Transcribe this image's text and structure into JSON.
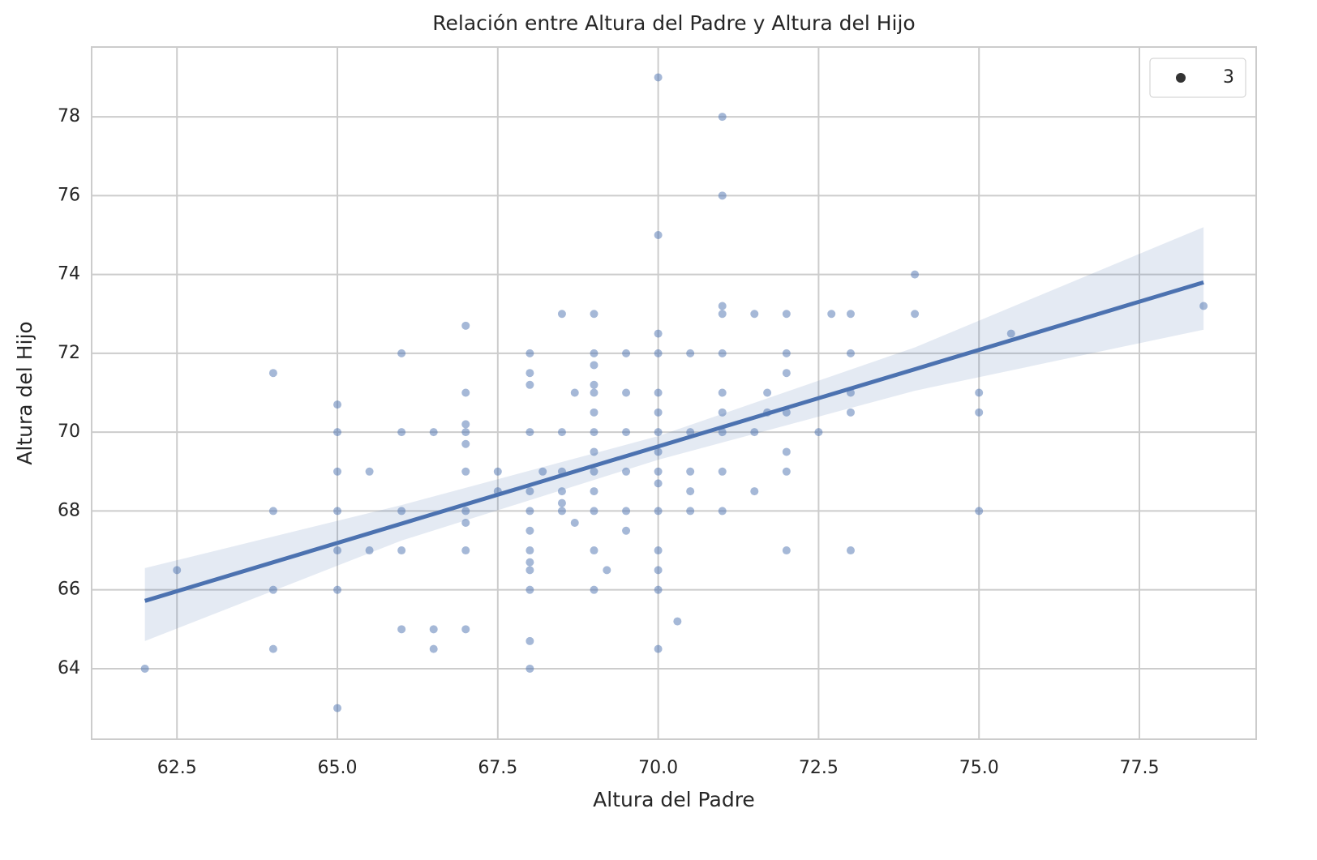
{
  "chart_data": {
    "type": "scatter",
    "title": "Relación entre Altura del Padre y Altura del Hijo",
    "x_label": "Altura del Padre",
    "y_label": "Altura del Hijo",
    "xlim": [
      61.17,
      79.32
    ],
    "ylim": [
      62.21,
      79.77
    ],
    "xticks": [
      62.5,
      {
        "value": 65,
        "label": "65.0"
      },
      67.5,
      {
        "value": 70,
        "label": "70.0"
      },
      72.5,
      {
        "value": 75,
        "label": "75.0"
      },
      77.5
    ],
    "yticks": [
      64,
      66,
      68,
      70,
      72,
      74,
      76,
      78
    ],
    "grid": true,
    "legend_position": "upper right",
    "series": [
      {
        "name": "3",
        "color": "#4c72b0",
        "x": [
          62,
          62.5,
          64,
          64,
          64,
          64,
          65,
          65,
          65,
          65,
          65,
          65,
          65,
          65.5,
          65.5,
          66,
          66,
          66,
          66,
          66,
          66.5,
          66.5,
          66.5,
          67,
          67,
          67,
          67,
          67,
          67,
          67,
          67,
          67,
          67,
          67.5,
          67.5,
          68,
          68,
          68,
          68,
          68,
          68,
          68,
          68,
          68,
          68,
          68,
          68,
          68,
          68.2,
          68.5,
          68.5,
          68.5,
          68.5,
          68.5,
          68.5,
          68.7,
          68.7,
          69,
          69,
          69,
          69,
          69,
          69,
          69,
          69,
          69,
          69,
          69,
          69,
          69,
          69.2,
          69.5,
          69.5,
          69.5,
          69.5,
          69.5,
          69.5,
          70,
          70,
          70,
          70,
          70,
          70,
          70,
          70,
          70,
          70,
          70,
          70,
          70,
          70,
          70,
          70.3,
          70.5,
          70.5,
          70.5,
          70.5,
          70.5,
          71,
          71,
          71,
          71,
          71,
          71,
          71,
          71,
          71,
          71,
          71.5,
          71.5,
          71.5,
          71.7,
          71.7,
          72,
          72,
          72,
          72,
          72,
          72,
          72,
          72.5,
          72.7,
          73,
          73,
          73,
          73,
          73,
          74,
          74,
          75,
          75,
          75,
          75.5,
          78.5
        ],
        "values": [
          64,
          66.5,
          71.5,
          68,
          66,
          64.5,
          70.7,
          70,
          69,
          68,
          67,
          66,
          63,
          69,
          67,
          72,
          70,
          68,
          67,
          65,
          70,
          65,
          64.5,
          72.7,
          71,
          70.2,
          70,
          69.7,
          69,
          68,
          67.7,
          67,
          65,
          69,
          68.5,
          72,
          71.5,
          71.2,
          70,
          68.5,
          68,
          67.5,
          67,
          66.7,
          66.5,
          66,
          64.7,
          64,
          69,
          73,
          70,
          69,
          68.5,
          68.2,
          68,
          71,
          67.7,
          73,
          72,
          71.7,
          71.2,
          71,
          70.5,
          70,
          69.5,
          69,
          68.5,
          68,
          67,
          66,
          66.5,
          72,
          71,
          70,
          69,
          68,
          67.5,
          79,
          75,
          72.5,
          72,
          71,
          70.5,
          70,
          69.5,
          69,
          68.7,
          68,
          67,
          66.5,
          66,
          64.5,
          65.2,
          72,
          70,
          69,
          68.5,
          68,
          78,
          76,
          73.2,
          73,
          72,
          71,
          70.5,
          70,
          69,
          68,
          73,
          70,
          68.5,
          71,
          70.5,
          73,
          72,
          71.5,
          70.5,
          69.5,
          69,
          67,
          70,
          73,
          73,
          72,
          71,
          70.5,
          67,
          74,
          73,
          71,
          70.5,
          68,
          72.5,
          73.2
        ]
      }
    ],
    "regression": {
      "color": "#4c72b0",
      "x": [
        62,
        78.5
      ],
      "values": [
        65.72,
        73.8
      ]
    },
    "confidence_band": {
      "x": [
        62,
        66,
        70,
        74,
        78.5
      ],
      "lower": [
        64.7,
        67.25,
        69.3,
        71.05,
        72.6
      ],
      "upper": [
        66.55,
        68.15,
        69.9,
        72.15,
        75.2
      ]
    }
  }
}
